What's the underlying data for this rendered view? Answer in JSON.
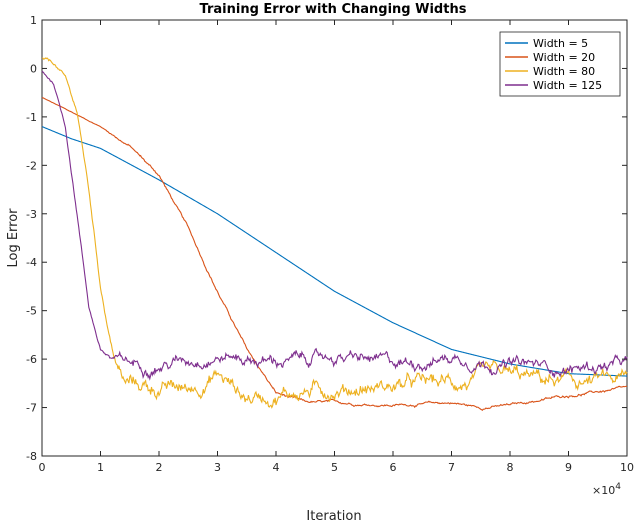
{
  "chart_data": {
    "type": "line",
    "title": "Training Error with Changing Widths",
    "xlabel": "Iteration",
    "ylabel": "Log Error",
    "x_exponent_label": "×10",
    "x_exponent_power": "4",
    "xlim": [
      0,
      10
    ],
    "ylim": [
      -8,
      1
    ],
    "xticks": [
      "0",
      "1",
      "2",
      "3",
      "4",
      "5",
      "6",
      "7",
      "8",
      "9",
      "10"
    ],
    "yticks": [
      "-8",
      "-7",
      "-6",
      "-5",
      "-4",
      "-3",
      "-2",
      "-1",
      "0",
      "1"
    ],
    "grid": false,
    "legend_position": "top-right",
    "series": [
      {
        "name": "Width = 5",
        "color": "#0072BD",
        "noise": 0.0,
        "points": [
          [
            0,
            -1.2
          ],
          [
            0.5,
            -1.45
          ],
          [
            1,
            -1.65
          ],
          [
            2,
            -2.3
          ],
          [
            3,
            -3.0
          ],
          [
            4,
            -3.8
          ],
          [
            5,
            -4.6
          ],
          [
            6,
            -5.25
          ],
          [
            7,
            -5.8
          ],
          [
            8,
            -6.1
          ],
          [
            9,
            -6.3
          ],
          [
            10,
            -6.35
          ]
        ]
      },
      {
        "name": "Width = 20",
        "color": "#D95319",
        "noise": 0.03,
        "points": [
          [
            0,
            -0.6
          ],
          [
            1,
            -1.2
          ],
          [
            1.5,
            -1.6
          ],
          [
            2,
            -2.2
          ],
          [
            2.5,
            -3.3
          ],
          [
            3,
            -4.6
          ],
          [
            3.5,
            -5.8
          ],
          [
            4,
            -6.7
          ],
          [
            4.5,
            -6.9
          ],
          [
            5,
            -6.9
          ],
          [
            6,
            -6.95
          ],
          [
            7,
            -6.9
          ],
          [
            7.5,
            -7.0
          ],
          [
            8,
            -6.95
          ],
          [
            9,
            -6.75
          ],
          [
            10,
            -6.6
          ]
        ]
      },
      {
        "name": "Width = 80",
        "color": "#EDB120",
        "noise": 0.17,
        "points": [
          [
            0,
            0.2
          ],
          [
            0.2,
            0.1
          ],
          [
            0.4,
            -0.2
          ],
          [
            0.6,
            -0.9
          ],
          [
            0.8,
            -2.5
          ],
          [
            1.0,
            -4.5
          ],
          [
            1.2,
            -5.8
          ],
          [
            1.4,
            -6.5
          ],
          [
            2,
            -6.6
          ],
          [
            2.5,
            -6.65
          ],
          [
            3,
            -6.3
          ],
          [
            3.5,
            -6.8
          ],
          [
            4,
            -6.7
          ],
          [
            5,
            -6.6
          ],
          [
            6,
            -6.55
          ],
          [
            7,
            -6.5
          ],
          [
            8,
            -6.4
          ],
          [
            9,
            -6.5
          ],
          [
            10,
            -6.45
          ]
        ]
      },
      {
        "name": "Width = 125",
        "color": "#7E2F8E",
        "noise": 0.13,
        "points": [
          [
            0,
            -0.05
          ],
          [
            0.2,
            -0.3
          ],
          [
            0.4,
            -1.2
          ],
          [
            0.6,
            -3.0
          ],
          [
            0.8,
            -4.9
          ],
          [
            1.0,
            -5.8
          ],
          [
            1.2,
            -6.0
          ],
          [
            1.5,
            -6.1
          ],
          [
            2,
            -6.1
          ],
          [
            3,
            -5.9
          ],
          [
            4,
            -6.05
          ],
          [
            5,
            -5.95
          ],
          [
            6,
            -6.1
          ],
          [
            7,
            -5.95
          ],
          [
            8,
            -6.1
          ],
          [
            9,
            -6.2
          ],
          [
            10,
            -6.1
          ]
        ]
      }
    ]
  }
}
